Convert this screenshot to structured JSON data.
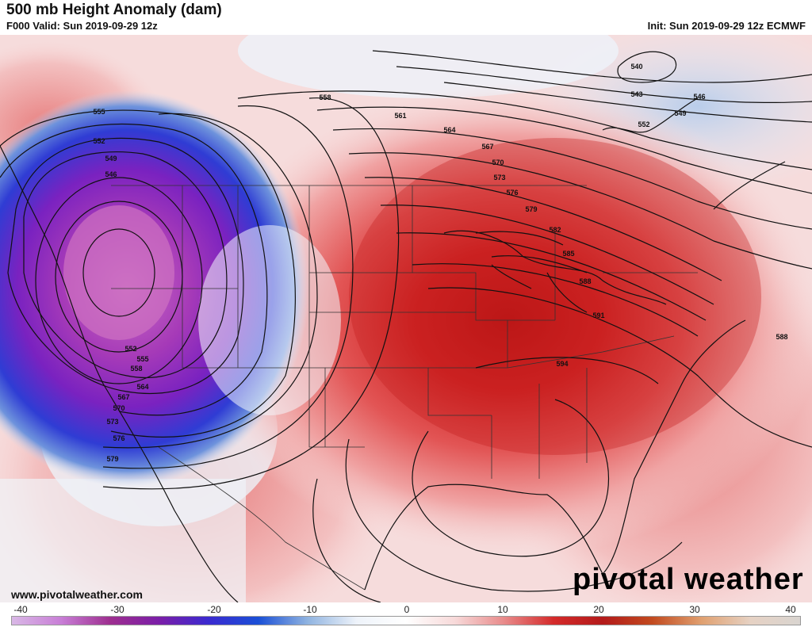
{
  "header": {
    "title": "500 mb Height Anomaly (dam)",
    "valid": "F000 Valid: Sun 2019-09-29 12z",
    "init": "Init: Sun 2019-09-29 12z ECMWF"
  },
  "footer": {
    "website": "www.pivotalweather.com",
    "brand": "pivotal weather"
  },
  "colorbar": {
    "ticks": [
      "-40",
      "-30",
      "-20",
      "-10",
      "0",
      "10",
      "20",
      "30",
      "40"
    ],
    "stops": [
      "#d9b8e6",
      "#c87ed6",
      "#9d2e8f",
      "#7a1ea8",
      "#3a2ad0",
      "#1a4fd6",
      "#8fb3e0",
      "#eef3fa",
      "#ffffff",
      "#f7d9d9",
      "#e88a8a",
      "#d42a2a",
      "#b31a1a",
      "#c24a1f",
      "#e0a070",
      "#e6d2c4",
      "#d9d4d0"
    ]
  },
  "contours": {
    "labels": [
      "540",
      "543",
      "546",
      "549",
      "552",
      "555",
      "558",
      "561",
      "564",
      "567",
      "570",
      "573",
      "576",
      "579",
      "582",
      "585",
      "588",
      "591",
      "594"
    ]
  }
}
